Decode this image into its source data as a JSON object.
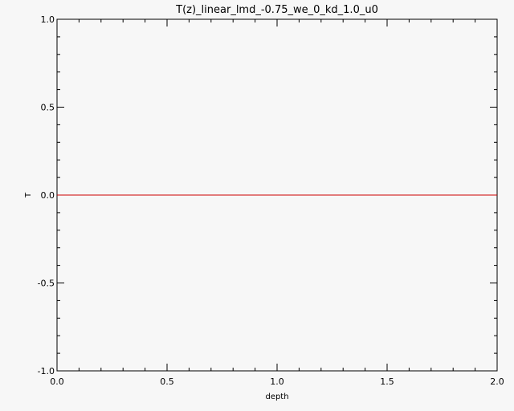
{
  "chart_data": {
    "type": "line",
    "title": "T(z)_linear_lmd_-0.75_we_0_kd_1.0_u0",
    "xlabel": "depth",
    "ylabel": "T",
    "xlim": [
      0.0,
      2.0
    ],
    "ylim": [
      -1.0,
      1.0
    ],
    "x_ticks": [
      0.0,
      0.5,
      1.0,
      1.5,
      2.0
    ],
    "x_tick_labels": [
      "0.0",
      "0.5",
      "1.0",
      "1.5",
      "2.0"
    ],
    "y_ticks": [
      -1.0,
      -0.5,
      0.0,
      0.5,
      1.0
    ],
    "y_tick_labels": [
      "-1.0",
      "-0.5",
      "0.0",
      "0.5",
      "1.0"
    ],
    "x_minor_step": 0.1,
    "y_minor_step": 0.1,
    "grid": false,
    "series": [
      {
        "color": "#cc0000",
        "x": [
          0.0,
          2.0
        ],
        "y": [
          0.0,
          0.0
        ]
      }
    ]
  }
}
